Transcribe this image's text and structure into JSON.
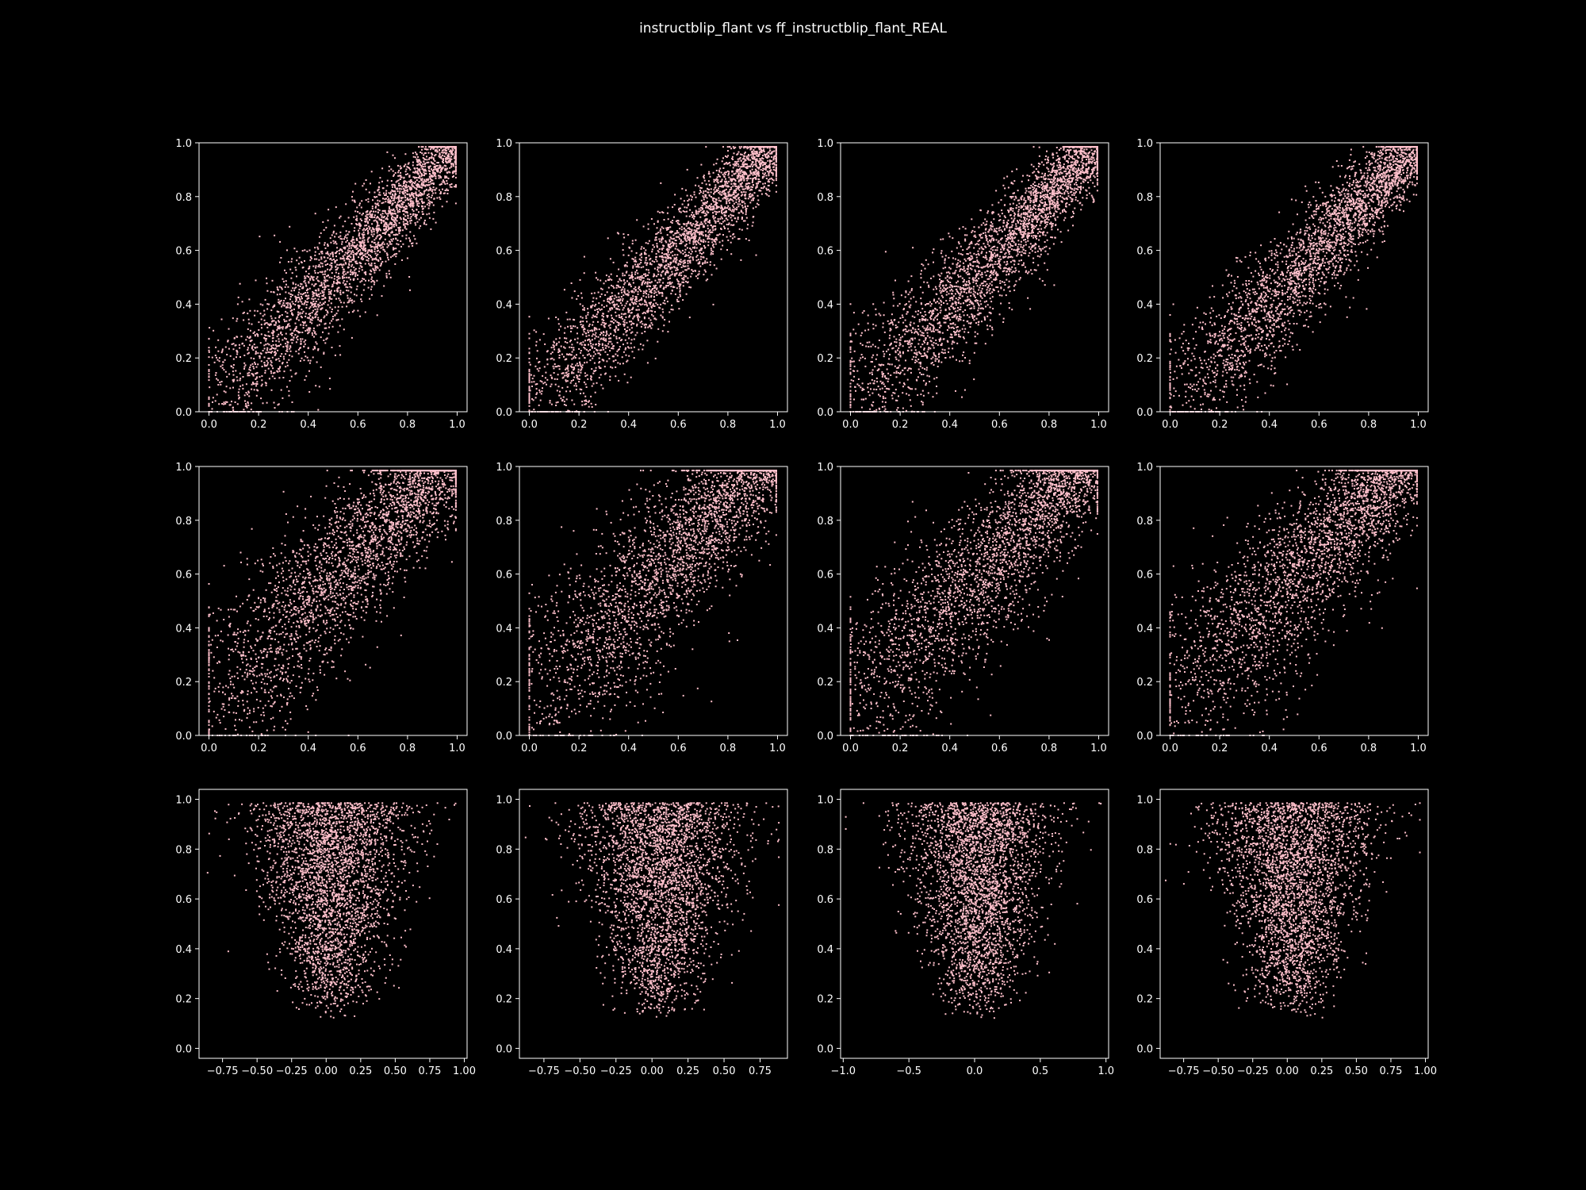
{
  "figure": {
    "title": "instructblip_flant vs ff_instructblip_flant_REAL",
    "background": "#000000",
    "foreground": "#ffffff",
    "marker_color": "#ffc0cb"
  },
  "chart_data": [
    {
      "type": "scatter",
      "row": 0,
      "col": 0,
      "xlim": [
        -0.04,
        1.04
      ],
      "ylim": [
        0,
        1
      ],
      "xticks": [
        0,
        0.2,
        0.4,
        0.6,
        0.8,
        1
      ],
      "xtick_labels": [
        "0.0",
        "0.2",
        "0.4",
        "0.6",
        "0.8",
        "1.0"
      ],
      "yticks": [
        0,
        0.2,
        0.4,
        0.6,
        0.8,
        1
      ],
      "ytick_labels": [
        "0.0",
        "0.2",
        "0.4",
        "0.6",
        "0.8",
        "1.0"
      ],
      "cloud": {
        "shape": "diagonal",
        "spread": 0.13,
        "approx_points": 3000
      }
    },
    {
      "type": "scatter",
      "row": 0,
      "col": 1,
      "xlim": [
        -0.04,
        1.04
      ],
      "ylim": [
        0,
        1
      ],
      "xticks": [
        0,
        0.2,
        0.4,
        0.6,
        0.8,
        1
      ],
      "xtick_labels": [
        "0.0",
        "0.2",
        "0.4",
        "0.6",
        "0.8",
        "1.0"
      ],
      "yticks": [
        0,
        0.2,
        0.4,
        0.6,
        0.8,
        1
      ],
      "ytick_labels": [
        "0.0",
        "0.2",
        "0.4",
        "0.6",
        "0.8",
        "1.0"
      ],
      "cloud": {
        "shape": "diagonal",
        "spread": 0.13,
        "approx_points": 3000
      }
    },
    {
      "type": "scatter",
      "row": 0,
      "col": 2,
      "xlim": [
        -0.04,
        1.04
      ],
      "ylim": [
        0,
        1
      ],
      "xticks": [
        0,
        0.2,
        0.4,
        0.6,
        0.8,
        1
      ],
      "xtick_labels": [
        "0.0",
        "0.2",
        "0.4",
        "0.6",
        "0.8",
        "1.0"
      ],
      "yticks": [
        0,
        0.2,
        0.4,
        0.6,
        0.8,
        1
      ],
      "ytick_labels": [
        "0.0",
        "0.2",
        "0.4",
        "0.6",
        "0.8",
        "1.0"
      ],
      "cloud": {
        "shape": "diagonal",
        "spread": 0.14,
        "approx_points": 3000
      }
    },
    {
      "type": "scatter",
      "row": 0,
      "col": 3,
      "xlim": [
        -0.04,
        1.04
      ],
      "ylim": [
        0,
        1
      ],
      "xticks": [
        0,
        0.2,
        0.4,
        0.6,
        0.8,
        1
      ],
      "xtick_labels": [
        "0.0",
        "0.2",
        "0.4",
        "0.6",
        "0.8",
        "1.0"
      ],
      "yticks": [
        0,
        0.2,
        0.4,
        0.6,
        0.8,
        1
      ],
      "ytick_labels": [
        "0.0",
        "0.2",
        "0.4",
        "0.6",
        "0.8",
        "1.0"
      ],
      "cloud": {
        "shape": "diagonal",
        "spread": 0.14,
        "approx_points": 3000
      }
    },
    {
      "type": "scatter",
      "row": 1,
      "col": 0,
      "xlim": [
        -0.04,
        1.04
      ],
      "ylim": [
        0,
        1
      ],
      "xticks": [
        0,
        0.2,
        0.4,
        0.6,
        0.8,
        1
      ],
      "xtick_labels": [
        "0.0",
        "0.2",
        "0.4",
        "0.6",
        "0.8",
        "1.0"
      ],
      "yticks": [
        0,
        0.2,
        0.4,
        0.6,
        0.8,
        1
      ],
      "ytick_labels": [
        "0.0",
        "0.2",
        "0.4",
        "0.6",
        "0.8",
        "1.0"
      ],
      "cloud": {
        "shape": "diagonal",
        "spread": 0.2,
        "approx_points": 3000
      }
    },
    {
      "type": "scatter",
      "row": 1,
      "col": 1,
      "xlim": [
        -0.04,
        1.04
      ],
      "ylim": [
        0,
        1
      ],
      "xticks": [
        0,
        0.2,
        0.4,
        0.6,
        0.8,
        1
      ],
      "xtick_labels": [
        "0.0",
        "0.2",
        "0.4",
        "0.6",
        "0.8",
        "1.0"
      ],
      "yticks": [
        0,
        0.2,
        0.4,
        0.6,
        0.8,
        1
      ],
      "ytick_labels": [
        "0.0",
        "0.2",
        "0.4",
        "0.6",
        "0.8",
        "1.0"
      ],
      "cloud": {
        "shape": "diagonal",
        "spread": 0.21,
        "approx_points": 3000
      }
    },
    {
      "type": "scatter",
      "row": 1,
      "col": 2,
      "xlim": [
        -0.04,
        1.04
      ],
      "ylim": [
        0,
        1
      ],
      "xticks": [
        0,
        0.2,
        0.4,
        0.6,
        0.8,
        1
      ],
      "xtick_labels": [
        "0.0",
        "0.2",
        "0.4",
        "0.6",
        "0.8",
        "1.0"
      ],
      "yticks": [
        0,
        0.2,
        0.4,
        0.6,
        0.8,
        1
      ],
      "ytick_labels": [
        "0.0",
        "0.2",
        "0.4",
        "0.6",
        "0.8",
        "1.0"
      ],
      "cloud": {
        "shape": "diagonal",
        "spread": 0.2,
        "approx_points": 3000
      }
    },
    {
      "type": "scatter",
      "row": 1,
      "col": 3,
      "xlim": [
        -0.04,
        1.04
      ],
      "ylim": [
        0,
        1
      ],
      "xticks": [
        0,
        0.2,
        0.4,
        0.6,
        0.8,
        1
      ],
      "xtick_labels": [
        "0.0",
        "0.2",
        "0.4",
        "0.6",
        "0.8",
        "1.0"
      ],
      "yticks": [
        0,
        0.2,
        0.4,
        0.6,
        0.8,
        1
      ],
      "ytick_labels": [
        "0.0",
        "0.2",
        "0.4",
        "0.6",
        "0.8",
        "1.0"
      ],
      "cloud": {
        "shape": "diagonal",
        "spread": 0.2,
        "approx_points": 3000
      }
    },
    {
      "type": "scatter",
      "row": 2,
      "col": 0,
      "xlim": [
        -0.92,
        1.02
      ],
      "ylim": [
        -0.04,
        1.04
      ],
      "xticks": [
        -0.75,
        -0.5,
        -0.25,
        0,
        0.25,
        0.5,
        0.75,
        1
      ],
      "xtick_labels": [
        "−0.75",
        "−0.50",
        "−0.25",
        "0.00",
        "0.25",
        "0.50",
        "0.75",
        "1.00"
      ],
      "yticks": [
        0,
        0.2,
        0.4,
        0.6,
        0.8,
        1
      ],
      "ytick_labels": [
        "0.0",
        "0.2",
        "0.4",
        "0.6",
        "0.8",
        "1.0"
      ],
      "cloud": {
        "shape": "vertical",
        "center_x": 0.05,
        "approx_points": 3000
      }
    },
    {
      "type": "scatter",
      "row": 2,
      "col": 1,
      "xlim": [
        -0.92,
        0.94
      ],
      "ylim": [
        -0.04,
        1.04
      ],
      "xticks": [
        -0.75,
        -0.5,
        -0.25,
        0,
        0.25,
        0.5,
        0.75
      ],
      "xtick_labels": [
        "−0.75",
        "−0.50",
        "−0.25",
        "0.00",
        "0.25",
        "0.50",
        "0.75"
      ],
      "yticks": [
        0,
        0.2,
        0.4,
        0.6,
        0.8,
        1
      ],
      "ytick_labels": [
        "0.0",
        "0.2",
        "0.4",
        "0.6",
        "0.8",
        "1.0"
      ],
      "cloud": {
        "shape": "vertical",
        "center_x": 0.05,
        "approx_points": 3000
      }
    },
    {
      "type": "scatter",
      "row": 2,
      "col": 2,
      "xlim": [
        -1.02,
        1.02
      ],
      "ylim": [
        -0.04,
        1.04
      ],
      "xticks": [
        -1,
        -0.5,
        0,
        0.5,
        1
      ],
      "xtick_labels": [
        "−1.0",
        "−0.5",
        "0.0",
        "0.5",
        "1.0"
      ],
      "yticks": [
        0,
        0.2,
        0.4,
        0.6,
        0.8,
        1
      ],
      "ytick_labels": [
        "0.0",
        "0.2",
        "0.4",
        "0.6",
        "0.8",
        "1.0"
      ],
      "cloud": {
        "shape": "vertical",
        "center_x": 0.02,
        "approx_points": 3000
      }
    },
    {
      "type": "scatter",
      "row": 2,
      "col": 3,
      "xlim": [
        -0.92,
        1.02
      ],
      "ylim": [
        -0.04,
        1.04
      ],
      "xticks": [
        -0.75,
        -0.5,
        -0.25,
        0,
        0.25,
        0.5,
        0.75,
        1
      ],
      "xtick_labels": [
        "−0.75",
        "−0.50",
        "−0.25",
        "0.00",
        "0.25",
        "0.50",
        "0.75",
        "1.00"
      ],
      "yticks": [
        0,
        0.2,
        0.4,
        0.6,
        0.8,
        1
      ],
      "ytick_labels": [
        "0.0",
        "0.2",
        "0.4",
        "0.6",
        "0.8",
        "1.0"
      ],
      "cloud": {
        "shape": "vertical",
        "center_x": 0.05,
        "approx_points": 3000
      }
    }
  ]
}
